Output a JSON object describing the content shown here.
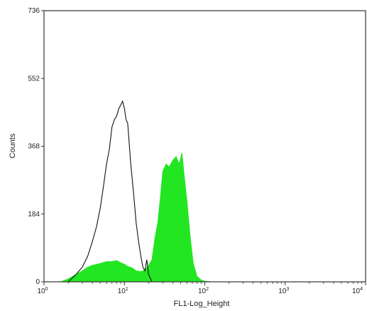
{
  "chart_data": {
    "type": "area",
    "title": "",
    "xlabel": "FL1-Log_Height",
    "ylabel": "Counts",
    "xscale": "log",
    "xlim": [
      1,
      10000
    ],
    "ylim": [
      0,
      736
    ],
    "x_ticks": [
      1,
      10,
      100,
      1000,
      10000
    ],
    "x_tick_labels": [
      {
        "base": "10",
        "exp": "0"
      },
      {
        "base": "10",
        "exp": "1"
      },
      {
        "base": "10",
        "exp": "2"
      },
      {
        "base": "10",
        "exp": "3"
      },
      {
        "base": "10",
        "exp": "4"
      }
    ],
    "y_ticks": [
      0,
      184,
      368,
      552,
      736
    ],
    "y_tick_labels": [
      "0",
      "184",
      "368",
      "552",
      "736"
    ],
    "grid": false,
    "legend": "none",
    "series": [
      {
        "style": "filled",
        "color": "#22e622",
        "x": [
          1.6,
          2.0,
          2.5,
          3.0,
          3.5,
          4.0,
          5.0,
          6.0,
          7.0,
          8.0,
          9.0,
          10.0,
          11.0,
          12.5,
          14.0,
          16.0,
          18.0,
          20.0,
          22.0,
          24.0,
          26.0,
          28.0,
          30.0,
          33.0,
          36.0,
          40.0,
          44.0,
          48.0,
          52.0,
          56.0,
          60.0,
          66.0,
          72.0,
          80.0,
          90.0,
          100.0,
          110.0,
          130.0
        ],
        "y": [
          0,
          8,
          20,
          30,
          40,
          45,
          50,
          55,
          55,
          58,
          52,
          48,
          42,
          38,
          30,
          28,
          32,
          45,
          60,
          120,
          160,
          230,
          300,
          320,
          312,
          330,
          340,
          320,
          350,
          280,
          220,
          120,
          50,
          15,
          5,
          2,
          1,
          0
        ]
      },
      {
        "style": "outline",
        "color": "#111111",
        "x": [
          2.0,
          2.5,
          3.0,
          3.5,
          4.0,
          4.5,
          5.0,
          5.5,
          6.0,
          6.5,
          7.0,
          7.5,
          8.0,
          8.5,
          9.0,
          9.5,
          10.0,
          10.5,
          11.0,
          12.0,
          13.0,
          14.0,
          15.0,
          16.0,
          17.0,
          18.0,
          19.0,
          20.0,
          22.0
        ],
        "y": [
          0,
          20,
          40,
          70,
          110,
          150,
          200,
          260,
          320,
          360,
          420,
          440,
          450,
          470,
          480,
          490,
          470,
          440,
          430,
          320,
          240,
          160,
          110,
          70,
          40,
          30,
          60,
          20,
          0
        ]
      }
    ]
  }
}
